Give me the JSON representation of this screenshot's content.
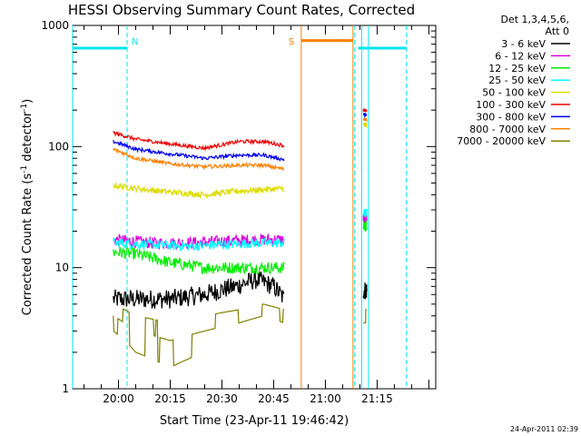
{
  "chart_data": {
    "type": "line",
    "title": "HESSI Observing Summary Count Rates, Corrected",
    "xlabel": "Start Time (23-Apr-11 19:46:42)",
    "ylabel": "Corrected Count Rate (s⁻¹ detector⁻¹)",
    "ylabel_main": "Corrected Count Rate (s",
    "ylabel_sup1": "-1",
    "ylabel_mid": " detector",
    "ylabel_sup2": "-1",
    "ylabel_end": ")",
    "yscale": "log",
    "ylim": [
      1,
      1000
    ],
    "xlim": [
      "19:46:42",
      "21:32:00"
    ],
    "x_ticks": [
      "20:00",
      "20:15",
      "20:30",
      "20:45",
      "21:00",
      "21:15"
    ],
    "y_ticks": [
      "1",
      "10",
      "100",
      "1000"
    ],
    "legend": {
      "header": [
        "Det 1,3,4,5,6,",
        "Att 0"
      ],
      "placement": "right",
      "entries": [
        {
          "label": "3 - 6 keV",
          "color": "#000000"
        },
        {
          "label": "6 - 12 keV",
          "color": "#dd00dd"
        },
        {
          "label": "12 - 25 keV",
          "color": "#00ee00"
        },
        {
          "label": "25 - 50 keV",
          "color": "#00ffff"
        },
        {
          "label": "50 - 100 keV",
          "color": "#dddd00"
        },
        {
          "label": "100 - 300 keV",
          "color": "#ee0000"
        },
        {
          "label": "300 - 800 keV",
          "color": "#0000ee"
        },
        {
          "label": "800 - 7000 keV",
          "color": "#ff8000"
        },
        {
          "label": "7000 - 20000 keV",
          "color": "#808000"
        }
      ]
    },
    "series": [
      {
        "name": "3 - 6 keV",
        "color": "#000000",
        "noise": 0.08,
        "segments": [
          [
            [
              "19:58:30",
              5.5
            ],
            [
              "20:05",
              5.5
            ],
            [
              "20:15",
              5.5
            ],
            [
              "20:25",
              6
            ],
            [
              "20:34",
              7
            ],
            [
              "20:40",
              8
            ],
            [
              "20:45",
              7
            ],
            [
              "20:48",
              5.5
            ]
          ],
          [
            [
              "21:11",
              6.5
            ],
            [
              "21:12",
              6.5
            ]
          ]
        ]
      },
      {
        "name": "6 - 12 keV",
        "color": "#dd00dd",
        "noise": 0.05,
        "segments": [
          [
            [
              "19:58:30",
              17
            ],
            [
              "20:10",
              16
            ],
            [
              "20:20",
              16
            ],
            [
              "20:30",
              16.5
            ],
            [
              "20:40",
              17
            ],
            [
              "20:48",
              17
            ]
          ],
          [
            [
              "21:11",
              25
            ],
            [
              "21:12",
              25
            ]
          ]
        ]
      },
      {
        "name": "12 - 25 keV",
        "color": "#00ee00",
        "noise": 0.05,
        "segments": [
          [
            [
              "19:58:30",
              13.5
            ],
            [
              "20:05",
              13
            ],
            [
              "20:15",
              11
            ],
            [
              "20:25",
              10
            ],
            [
              "20:35",
              10
            ],
            [
              "20:48",
              10
            ]
          ],
          [
            [
              "21:11",
              22
            ],
            [
              "21:12",
              22
            ]
          ]
        ]
      },
      {
        "name": "25 - 50 keV",
        "color": "#00ffff",
        "noise": 0.04,
        "segments": [
          [
            [
              "19:58:30",
              16
            ],
            [
              "20:10",
              15.5
            ],
            [
              "20:20",
              15
            ],
            [
              "20:30",
              15.5
            ],
            [
              "20:40",
              16
            ],
            [
              "20:48",
              16
            ]
          ],
          [
            [
              "21:11",
              28
            ],
            [
              "21:12",
              28
            ]
          ]
        ]
      },
      {
        "name": "50 - 100 keV",
        "color": "#dddd00",
        "noise": 0.025,
        "segments": [
          [
            [
              "19:58:30",
              48
            ],
            [
              "20:05",
              45
            ],
            [
              "20:15",
              42
            ],
            [
              "20:25",
              40
            ],
            [
              "20:35",
              43
            ],
            [
              "20:48",
              45
            ]
          ],
          [
            [
              "21:11",
              150
            ],
            [
              "21:12",
              150
            ]
          ]
        ]
      },
      {
        "name": "100 - 300 keV",
        "color": "#ee0000",
        "noise": 0.015,
        "segments": [
          [
            [
              "19:58:30",
              130
            ],
            [
              "20:05",
              115
            ],
            [
              "20:15",
              105
            ],
            [
              "20:25",
              97
            ],
            [
              "20:35",
              110
            ],
            [
              "20:42",
              110
            ],
            [
              "20:48",
              102
            ]
          ],
          [
            [
              "21:11",
              200
            ],
            [
              "21:12",
              195
            ]
          ]
        ]
      },
      {
        "name": "300 - 800 keV",
        "color": "#0000ee",
        "noise": 0.015,
        "segments": [
          [
            [
              "19:58:30",
              110
            ],
            [
              "20:05",
              95
            ],
            [
              "20:15",
              87
            ],
            [
              "20:25",
              80
            ],
            [
              "20:35",
              85
            ],
            [
              "20:42",
              85
            ],
            [
              "20:48",
              78
            ]
          ],
          [
            [
              "21:11",
              185
            ],
            [
              "21:12",
              180
            ]
          ]
        ]
      },
      {
        "name": "800 - 7000 keV",
        "color": "#ff8000",
        "noise": 0.015,
        "segments": [
          [
            [
              "19:58:30",
              95
            ],
            [
              "20:05",
              80
            ],
            [
              "20:15",
              72
            ],
            [
              "20:25",
              68
            ],
            [
              "20:35",
              70
            ],
            [
              "20:42",
              70
            ],
            [
              "20:48",
              65
            ]
          ],
          [
            [
              "21:11",
              170
            ],
            [
              "21:12",
              165
            ]
          ]
        ]
      },
      {
        "name": "7000 - 20000 keV",
        "color": "#808000",
        "noise": 0.0,
        "segments": [
          [
            [
              "19:58:30",
              4
            ],
            [
              "20:05",
              3
            ],
            [
              "20:15",
              2.5
            ],
            [
              "20:25",
              3
            ],
            [
              "20:35",
              3.5
            ],
            [
              "20:42",
              4
            ],
            [
              "20:48",
              3.5
            ]
          ],
          [
            [
              "21:11",
              3.5
            ],
            [
              "21:12",
              3.5
            ]
          ]
        ]
      }
    ],
    "flags": [
      {
        "label": "N",
        "color": "#00e5ee",
        "value": 650,
        "bars": [
          [
            "19:46:42",
            "20:02:30"
          ],
          [
            "21:09:30",
            "21:23:30"
          ]
        ],
        "dashed_lines": [
          "20:02:30",
          "21:08:30",
          "21:23:30"
        ],
        "solid_lines": [
          "19:46:42",
          "21:10:30",
          "21:12:30"
        ]
      },
      {
        "label": "S",
        "color": "#ff8000",
        "value": 750,
        "bars": [
          [
            "20:53",
            "21:08"
          ]
        ],
        "solid_lines": [
          "20:53",
          "21:08"
        ]
      }
    ]
  },
  "footer": {
    "date_stamp": "24-Apr-2011 02:39"
  }
}
